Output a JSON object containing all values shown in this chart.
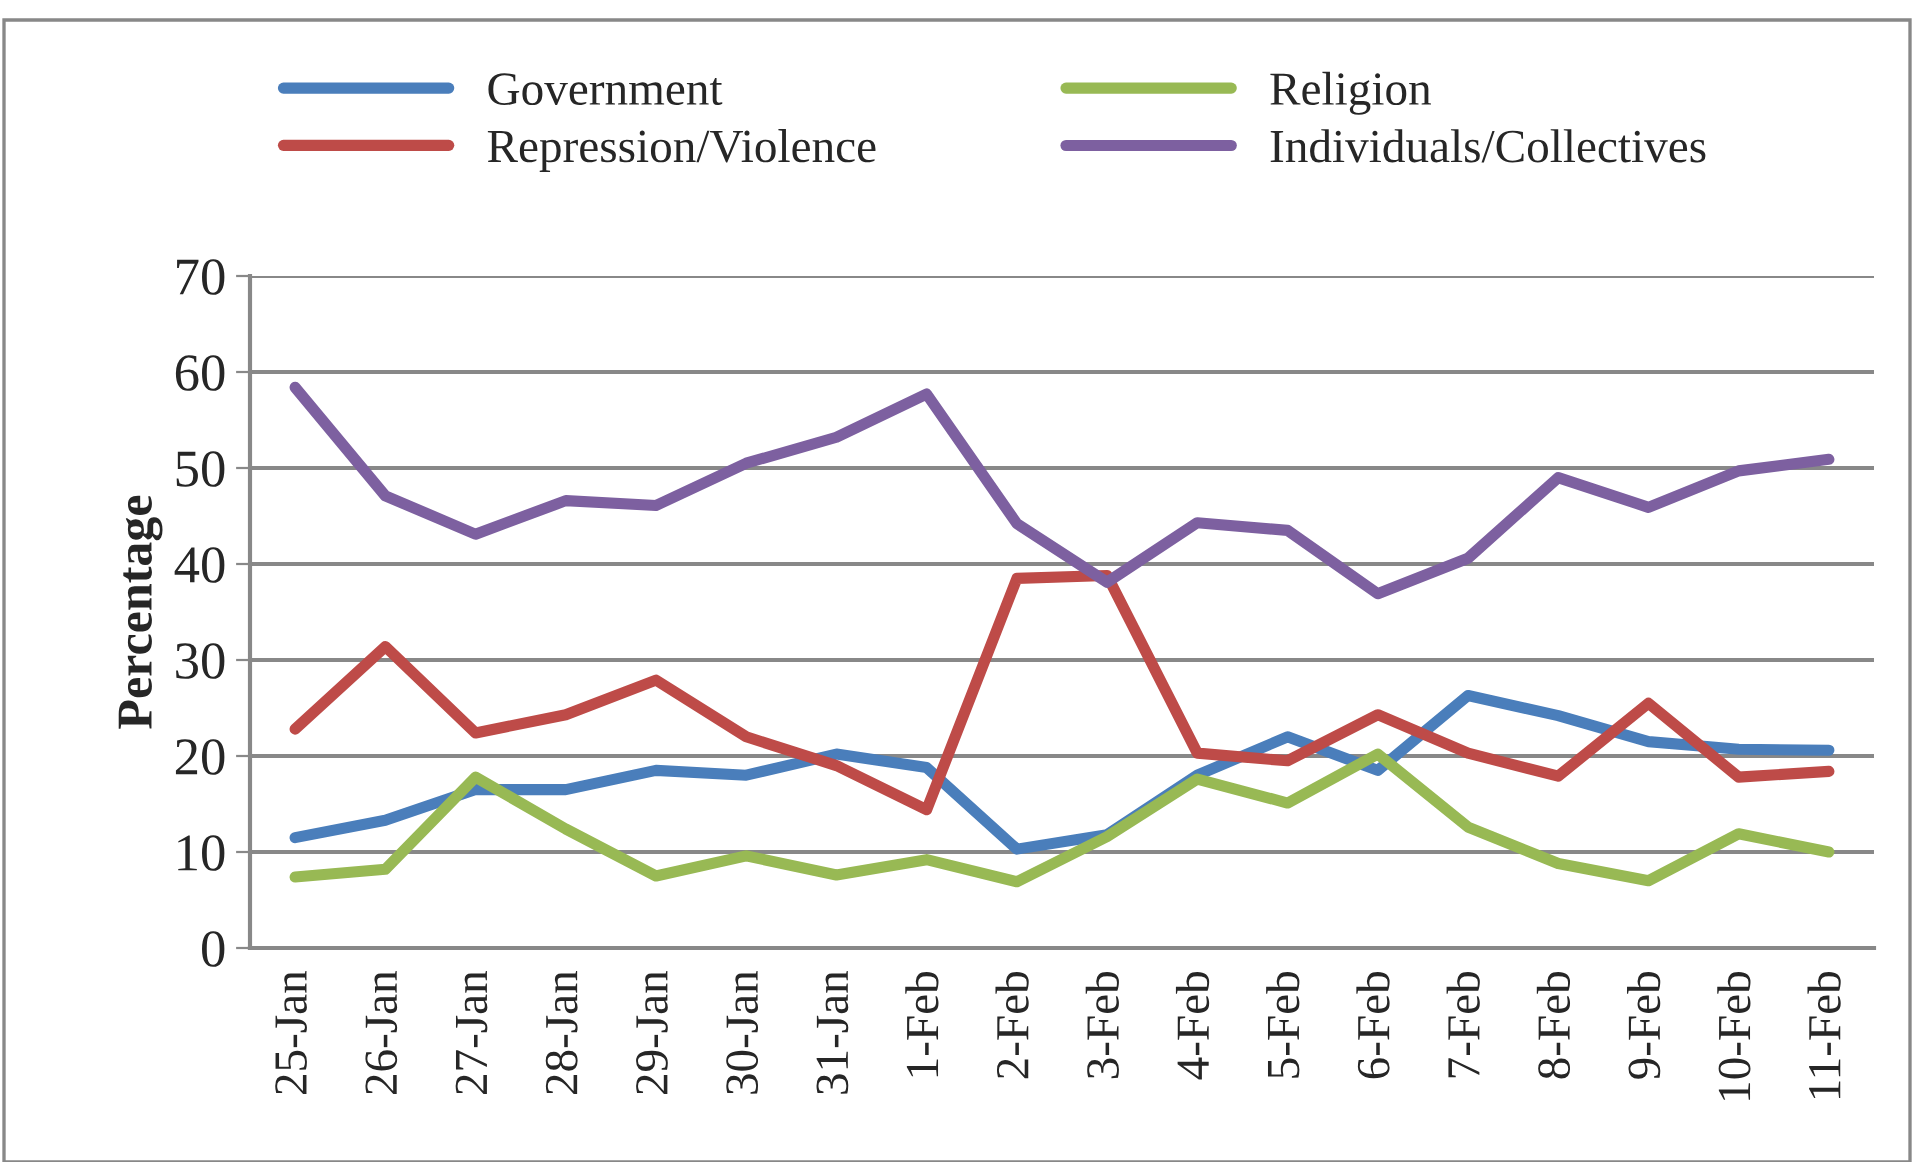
{
  "chart_data": {
    "type": "line",
    "ylabel": "Percentage",
    "categories": [
      "25-Jan",
      "26-Jan",
      "27-Jan",
      "28-Jan",
      "29-Jan",
      "30-Jan",
      "31-Jan",
      "1-Feb",
      "2-Feb",
      "3-Feb",
      "4-Feb",
      "5-Feb",
      "6-Feb",
      "7-Feb",
      "8-Feb",
      "9-Feb",
      "10-Feb",
      "11-Feb"
    ],
    "series": [
      {
        "name": "Government",
        "color": "#4a7ebb",
        "values": [
          11.5,
          13.3,
          16.5,
          16.5,
          18.5,
          18,
          20.2,
          18.8,
          10.3,
          11.8,
          18,
          22,
          18.5,
          26.3,
          24.2,
          21.5,
          20.7,
          20.6
        ]
      },
      {
        "name": "Repression/Violence",
        "color": "#be4b48",
        "values": [
          22.8,
          31.4,
          22.4,
          24.3,
          27.9,
          22,
          19,
          14.4,
          38.5,
          38.8,
          20.3,
          19.5,
          24.3,
          20.3,
          17.9,
          25.5,
          17.8,
          18.4
        ]
      },
      {
        "name": "Religion",
        "color": "#98b954",
        "values": [
          7.4,
          8.2,
          17.8,
          12.4,
          7.5,
          9.6,
          7.6,
          9.2,
          6.9,
          11.6,
          17.6,
          15.1,
          20.2,
          12.6,
          8.8,
          7,
          11.9,
          10
        ]
      },
      {
        "name": "Individuals/Collectives",
        "color": "#7d60a0",
        "values": [
          58.4,
          47.1,
          43.1,
          46.6,
          46.1,
          50.5,
          53.2,
          57.7,
          44.2,
          38.1,
          44.3,
          43.5,
          36.9,
          40.6,
          49,
          45.9,
          49.7,
          50.9
        ]
      }
    ],
    "ylim": [
      0,
      70
    ],
    "yticks": [
      0,
      10,
      20,
      30,
      40,
      50,
      60,
      70
    ],
    "grid": "y",
    "legend": "top",
    "marker": "none",
    "line_style": "solid"
  }
}
